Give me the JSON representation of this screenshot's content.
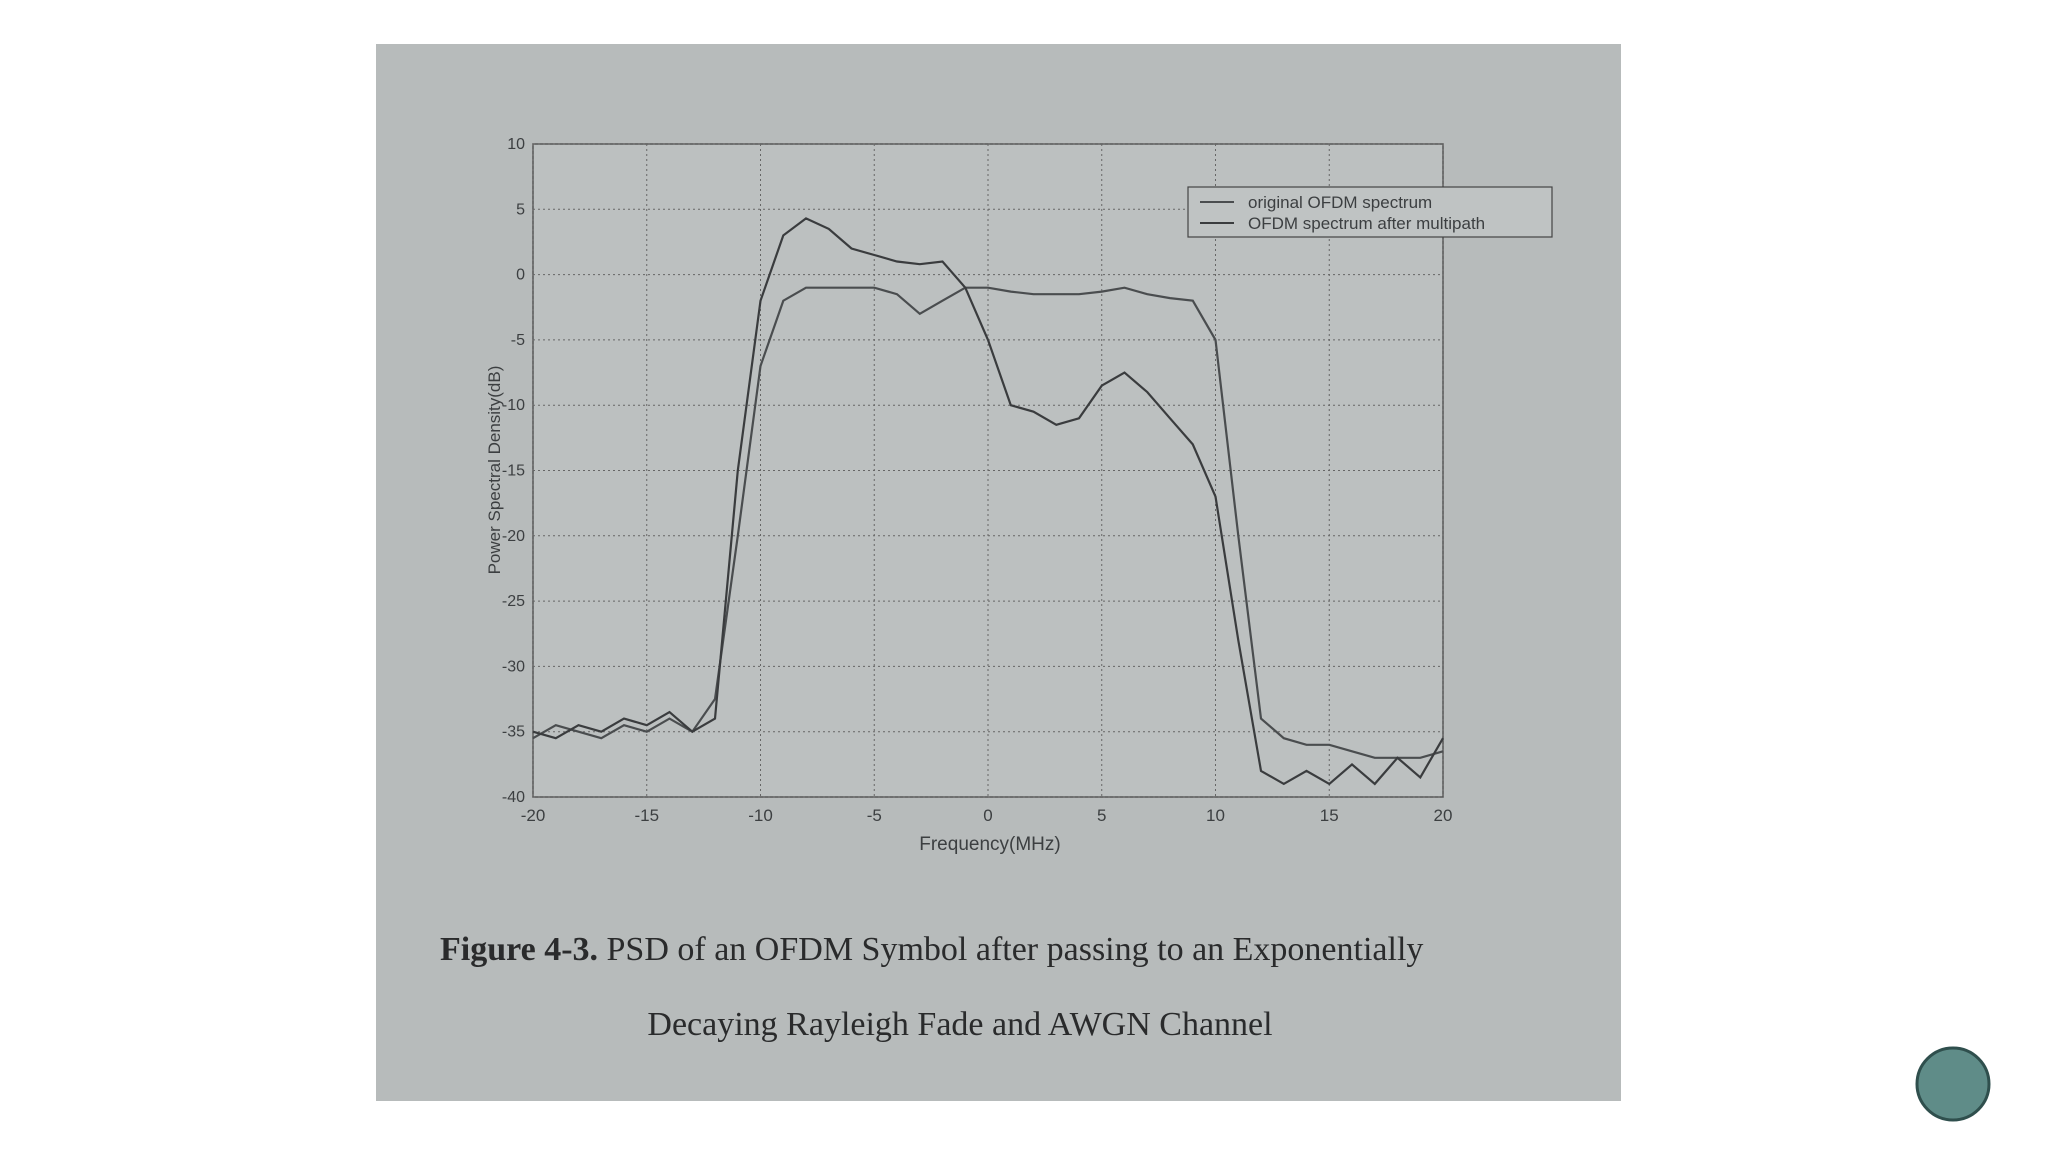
{
  "chart_data": {
    "type": "line",
    "x_label": "Frequency(MHz)",
    "y_label": "Power Spectral Density(dB)",
    "x": [
      -20,
      -19,
      -18,
      -17,
      -16,
      -15,
      -14,
      -13,
      -12,
      -11,
      -10,
      -9,
      -8,
      -7,
      -6,
      -5,
      -4,
      -3,
      -2,
      -1,
      0,
      1,
      2,
      3,
      4,
      5,
      6,
      7,
      8,
      9,
      10,
      11,
      12,
      13,
      14,
      15,
      16,
      17,
      18,
      19,
      20
    ],
    "series": [
      {
        "name": "original OFDM spectrum",
        "color": "#4a4d4f",
        "values": [
          -35.5,
          -34.5,
          -35,
          -35.5,
          -34.5,
          -35,
          -34,
          -35,
          -32.5,
          -20,
          -7,
          -2,
          -1,
          -1,
          -1,
          -1,
          -1.5,
          -3,
          -2,
          -1,
          -1,
          -1.3,
          -1.5,
          -1.5,
          -1.5,
          -1.3,
          -1,
          -1.5,
          -1.8,
          -2,
          -5,
          -20,
          -34,
          -35.5,
          -36,
          -36,
          -36.5,
          -37,
          -37,
          -37,
          -36.5
        ]
      },
      {
        "name": "OFDM spectrum after multipath",
        "color": "#3a3c3e",
        "values": [
          -35,
          -35.5,
          -34.5,
          -35,
          -34,
          -34.5,
          -33.5,
          -35,
          -34,
          -15,
          -2,
          3,
          4.3,
          3.5,
          2,
          1.5,
          1,
          0.8,
          1,
          -1,
          -5,
          -10,
          -10.5,
          -11.5,
          -11,
          -8.5,
          -7.5,
          -9,
          -11,
          -13,
          -17,
          -28,
          -38,
          -39,
          -38,
          -39,
          -37.5,
          -39,
          -37,
          -38.5,
          -35.5
        ]
      }
    ],
    "xlim": [
      -20,
      20
    ],
    "xticks": [
      -20,
      -15,
      -10,
      -5,
      0,
      5,
      10,
      15,
      20
    ],
    "ylim": [
      -40,
      10
    ],
    "yticks": [
      -40,
      -35,
      -30,
      -25,
      -20,
      -15,
      -10,
      -5,
      0,
      5,
      10
    ],
    "grid": true,
    "legend": "upper right",
    "caption_label": "Figure 4-3.",
    "caption_lines": [
      "PSD of an OFDM Symbol after passing to an Exponentially",
      "Decaying Rayleigh Fade and AWGN Channel"
    ]
  }
}
